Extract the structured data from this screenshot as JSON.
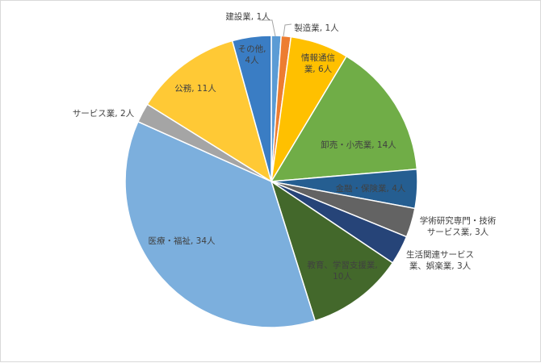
{
  "chart_data": {
    "type": "pie",
    "title": "",
    "slices": [
      {
        "category": "建設業",
        "value": 1,
        "label_lines": [
          "建設業, 1人"
        ],
        "color": "#5b9bd5"
      },
      {
        "category": "製造業",
        "value": 1,
        "label_lines": [
          "製造業, 1人"
        ],
        "color": "#ed7d31"
      },
      {
        "category": "情報通信業",
        "value": 6,
        "label_lines": [
          "情報通信",
          "業, 6人"
        ],
        "color": "#ffc000"
      },
      {
        "category": "卸売・小売業",
        "value": 14,
        "label_lines": [
          "卸売・小売業, 14人"
        ],
        "color": "#70ad47"
      },
      {
        "category": "金融・保険業",
        "value": 4,
        "label_lines": [
          "金融・保険業, 4人"
        ],
        "color": "#255e91"
      },
      {
        "category": "学術研究専門・技術サービス業",
        "value": 3,
        "label_lines": [
          "学術研究専門・技術",
          "サービス業, 3人"
        ],
        "color": "#636363"
      },
      {
        "category": "生活関連サービス業、娯楽業",
        "value": 3,
        "label_lines": [
          "生活関連サービス",
          "業、娯楽業, 3人"
        ],
        "color": "#264478"
      },
      {
        "category": "教育、学習支援業",
        "value": 10,
        "label_lines": [
          "教育、学習支援業,",
          "10人"
        ],
        "color": "#43682b"
      },
      {
        "category": "医療・福祉",
        "value": 34,
        "label_lines": [
          "医療・福祉, 34人"
        ],
        "color": "#7cafdd"
      },
      {
        "category": "サービス業",
        "value": 2,
        "label_lines": [
          "サービス業, 2人"
        ],
        "color": "#a5a5a5"
      },
      {
        "category": "公務",
        "value": 11,
        "label_lines": [
          "公務, 11人"
        ],
        "color": "#ffc935"
      },
      {
        "category": "その他",
        "value": 4,
        "label_lines": [
          "その他,",
          "4人"
        ],
        "color": "#3a7dc4"
      }
    ],
    "legend": "none",
    "data_labels": "category and value"
  }
}
